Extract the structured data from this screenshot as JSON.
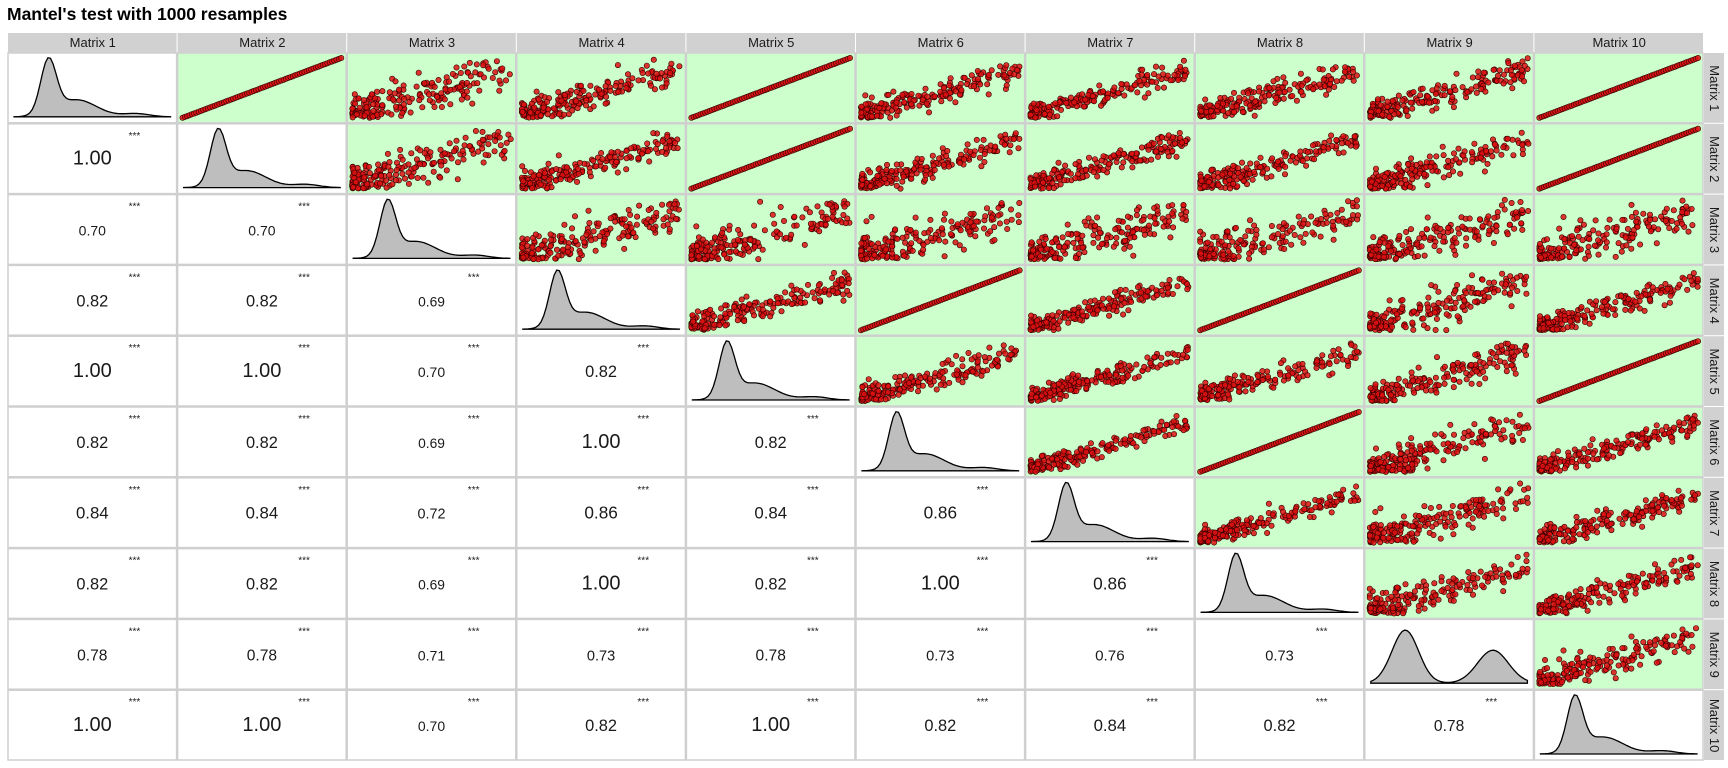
{
  "title": "Mantel's test with 1000 resamples",
  "chart_data": {
    "type": "scatter",
    "title": "Mantel's test with 1000 resamples",
    "layout": "pairs-matrix",
    "lower_panels": "correlation text",
    "diagonal_panels": "density",
    "upper_panels": "scatter",
    "matrices": [
      "Matrix 1",
      "Matrix 2",
      "Matrix 3",
      "Matrix 4",
      "Matrix 5",
      "Matrix 6",
      "Matrix 7",
      "Matrix 8",
      "Matrix 9",
      "Matrix 10"
    ],
    "correlations": [
      [
        null,
        null,
        null,
        null,
        null,
        null,
        null,
        null,
        null,
        null
      ],
      [
        1.0,
        null,
        null,
        null,
        null,
        null,
        null,
        null,
        null,
        null
      ],
      [
        0.7,
        0.7,
        null,
        null,
        null,
        null,
        null,
        null,
        null,
        null
      ],
      [
        0.82,
        0.82,
        0.69,
        null,
        null,
        null,
        null,
        null,
        null,
        null
      ],
      [
        1.0,
        1.0,
        0.7,
        0.82,
        null,
        null,
        null,
        null,
        null,
        null
      ],
      [
        0.82,
        0.82,
        0.69,
        1.0,
        0.82,
        null,
        null,
        null,
        null,
        null
      ],
      [
        0.84,
        0.84,
        0.72,
        0.86,
        0.84,
        0.86,
        null,
        null,
        null,
        null
      ],
      [
        0.82,
        0.82,
        0.69,
        1.0,
        0.82,
        1.0,
        0.86,
        null,
        null,
        null
      ],
      [
        0.78,
        0.78,
        0.71,
        0.73,
        0.78,
        0.73,
        0.76,
        0.73,
        null,
        null
      ],
      [
        1.0,
        1.0,
        0.7,
        0.82,
        1.0,
        0.82,
        0.84,
        0.82,
        0.78,
        null
      ]
    ],
    "correlation_labels": [
      [
        null,
        null,
        null,
        null,
        null,
        null,
        null,
        null,
        null,
        null
      ],
      [
        "1.00",
        null,
        null,
        null,
        null,
        null,
        null,
        null,
        null,
        null
      ],
      [
        "0.70",
        "0.70",
        null,
        null,
        null,
        null,
        null,
        null,
        null,
        null
      ],
      [
        "0.82",
        "0.82",
        "0.69",
        null,
        null,
        null,
        null,
        null,
        null,
        null
      ],
      [
        "1.00",
        "1.00",
        "0.70",
        "0.82",
        null,
        null,
        null,
        null,
        null,
        null
      ],
      [
        "0.82",
        "0.82",
        "0.69",
        "1.00",
        "0.82",
        null,
        null,
        null,
        null,
        null
      ],
      [
        "0.84",
        "0.84",
        "0.72",
        "0.86",
        "0.84",
        "0.86",
        null,
        null,
        null,
        null
      ],
      [
        "0.82",
        "0.82",
        "0.69",
        "1.00",
        "0.82",
        "1.00",
        "0.86",
        null,
        null,
        null
      ],
      [
        "0.78",
        "0.78",
        "0.71",
        "0.73",
        "0.78",
        "0.73",
        "0.76",
        "0.73",
        null,
        null
      ],
      [
        "1.00",
        "1.00",
        "0.70",
        "0.82",
        "1.00",
        "0.82",
        "0.84",
        "0.82",
        "0.78",
        null
      ]
    ],
    "significance": "***",
    "colors": {
      "panel_highlight": "#ccffcc",
      "point_fill": "#dd1111",
      "point_stroke": "#330000",
      "density_fill": "#bebebe",
      "strip": "#d1d1d1"
    }
  }
}
